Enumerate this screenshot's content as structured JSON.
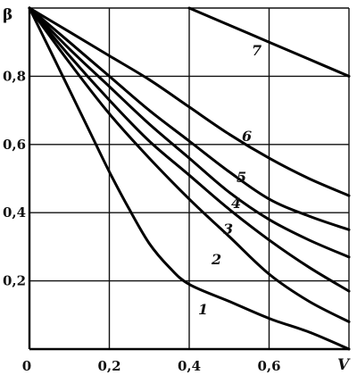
{
  "chart_data": {
    "type": "line",
    "ylabel": "β",
    "xlabel": "V",
    "xlim": [
      0,
      0.8
    ],
    "ylim": [
      0,
      1.0
    ],
    "xticks": [
      0,
      0.2,
      0.4,
      0.6
    ],
    "xtick_labels": [
      "0",
      "0,2",
      "0,4",
      "0,6"
    ],
    "yticks": [
      0.2,
      0.4,
      0.6,
      0.8
    ],
    "ytick_labels": [
      "0,2",
      "0,4",
      "0,6",
      "0,8"
    ],
    "grid": true,
    "series": [
      {
        "name": "1",
        "x": [
          0,
          0.05,
          0.1,
          0.15,
          0.2,
          0.25,
          0.3,
          0.35,
          0.4,
          0.5,
          0.6,
          0.7,
          0.8
        ],
        "y": [
          1.0,
          0.88,
          0.76,
          0.64,
          0.52,
          0.41,
          0.31,
          0.24,
          0.19,
          0.14,
          0.09,
          0.05,
          0.0
        ]
      },
      {
        "name": "2",
        "x": [
          0,
          0.1,
          0.2,
          0.3,
          0.4,
          0.5,
          0.6,
          0.7,
          0.8
        ],
        "y": [
          1.0,
          0.84,
          0.69,
          0.56,
          0.44,
          0.33,
          0.22,
          0.14,
          0.08
        ]
      },
      {
        "name": "3",
        "x": [
          0,
          0.1,
          0.2,
          0.3,
          0.4,
          0.5,
          0.6,
          0.7,
          0.8
        ],
        "y": [
          1.0,
          0.86,
          0.73,
          0.61,
          0.51,
          0.41,
          0.32,
          0.24,
          0.17
        ]
      },
      {
        "name": "4",
        "x": [
          0,
          0.1,
          0.2,
          0.3,
          0.4,
          0.5,
          0.6,
          0.7,
          0.8
        ],
        "y": [
          1.0,
          0.88,
          0.77,
          0.66,
          0.56,
          0.46,
          0.38,
          0.32,
          0.27
        ]
      },
      {
        "name": "5",
        "x": [
          0,
          0.1,
          0.2,
          0.3,
          0.4,
          0.5,
          0.6,
          0.7,
          0.8
        ],
        "y": [
          1.0,
          0.9,
          0.8,
          0.7,
          0.61,
          0.52,
          0.44,
          0.39,
          0.35
        ]
      },
      {
        "name": "6",
        "x": [
          0,
          0.1,
          0.2,
          0.3,
          0.4,
          0.5,
          0.6,
          0.7,
          0.8
        ],
        "y": [
          1.0,
          0.93,
          0.86,
          0.79,
          0.71,
          0.63,
          0.56,
          0.5,
          0.45
        ]
      },
      {
        "name": "7",
        "x": [
          0.4,
          0.5,
          0.6,
          0.7,
          0.8
        ],
        "y": [
          1.0,
          0.95,
          0.9,
          0.85,
          0.8
        ]
      }
    ]
  }
}
